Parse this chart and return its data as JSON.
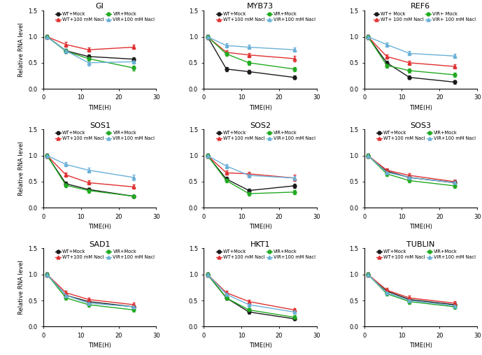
{
  "time_points": [
    1,
    6,
    12,
    24
  ],
  "panels": [
    {
      "title": "GI",
      "series": [
        {
          "label": "WT+Mock",
          "y": [
            1.0,
            0.73,
            0.62,
            0.57
          ],
          "err": [
            0.03,
            0.04,
            0.04,
            0.04
          ],
          "color": "#1a1a1a",
          "marker": "o"
        },
        {
          "label": "WT+100 mM Nacl",
          "y": [
            1.0,
            0.85,
            0.75,
            0.8
          ],
          "err": [
            0.04,
            0.05,
            0.04,
            0.04
          ],
          "color": "#e03030",
          "marker": "^"
        },
        {
          "label": "VIR+Mock",
          "y": [
            1.0,
            0.72,
            0.58,
            0.4
          ],
          "err": [
            0.03,
            0.04,
            0.04,
            0.05
          ],
          "color": "#22aa22",
          "marker": "o"
        },
        {
          "label": "VIR+100 mM Nacl",
          "y": [
            1.0,
            0.73,
            0.5,
            0.52
          ],
          "err": [
            0.03,
            0.04,
            0.05,
            0.04
          ],
          "color": "#6ab0d8",
          "marker": "^"
        }
      ]
    },
    {
      "title": "MYB73",
      "series": [
        {
          "label": "WT+Mock",
          "y": [
            1.0,
            0.38,
            0.33,
            0.22
          ],
          "err": [
            0.04,
            0.04,
            0.03,
            0.03
          ],
          "color": "#1a1a1a",
          "marker": "o"
        },
        {
          "label": "WT+100 mM Nacl",
          "y": [
            1.0,
            0.7,
            0.65,
            0.58
          ],
          "err": [
            0.04,
            0.04,
            0.04,
            0.05
          ],
          "color": "#e03030",
          "marker": "^"
        },
        {
          "label": "VIR+Mock",
          "y": [
            1.0,
            0.67,
            0.5,
            0.38
          ],
          "err": [
            0.04,
            0.04,
            0.04,
            0.04
          ],
          "color": "#22aa22",
          "marker": "o"
        },
        {
          "label": "VIR+100 mM Nacl",
          "y": [
            1.0,
            0.83,
            0.8,
            0.75
          ],
          "err": [
            0.03,
            0.04,
            0.04,
            0.04
          ],
          "color": "#6ab0d8",
          "marker": "^"
        }
      ]
    },
    {
      "title": "REF6",
      "series": [
        {
          "label": "WT+ Mock",
          "y": [
            1.0,
            0.5,
            0.22,
            0.13
          ],
          "err": [
            0.04,
            0.04,
            0.03,
            0.03
          ],
          "color": "#1a1a1a",
          "marker": "o"
        },
        {
          "label": "WT+ 100 mM Nacl",
          "y": [
            1.0,
            0.62,
            0.5,
            0.43
          ],
          "err": [
            0.04,
            0.04,
            0.04,
            0.04
          ],
          "color": "#e03030",
          "marker": "^"
        },
        {
          "label": "VIR+ Mock",
          "y": [
            1.0,
            0.45,
            0.35,
            0.27
          ],
          "err": [
            0.04,
            0.04,
            0.04,
            0.04
          ],
          "color": "#22aa22",
          "marker": "o"
        },
        {
          "label": "VIR+ 100 mM Nacl",
          "y": [
            1.0,
            0.85,
            0.68,
            0.63
          ],
          "err": [
            0.04,
            0.04,
            0.04,
            0.04
          ],
          "color": "#6ab0d8",
          "marker": "^"
        }
      ]
    },
    {
      "title": "SOS1",
      "series": [
        {
          "label": "WT+Mock",
          "y": [
            1.0,
            0.46,
            0.35,
            0.22
          ],
          "err": [
            0.04,
            0.04,
            0.03,
            0.03
          ],
          "color": "#1a1a1a",
          "marker": "o"
        },
        {
          "label": "WT+100 mM Nacl",
          "y": [
            1.0,
            0.63,
            0.48,
            0.4
          ],
          "err": [
            0.04,
            0.04,
            0.04,
            0.04
          ],
          "color": "#e03030",
          "marker": "^"
        },
        {
          "label": "VIR+Mock",
          "y": [
            1.0,
            0.43,
            0.33,
            0.22
          ],
          "err": [
            0.04,
            0.04,
            0.04,
            0.03
          ],
          "color": "#22aa22",
          "marker": "o"
        },
        {
          "label": "VIR+100 mM Nacl",
          "y": [
            1.0,
            0.83,
            0.72,
            0.58
          ],
          "err": [
            0.04,
            0.04,
            0.05,
            0.05
          ],
          "color": "#6ab0d8",
          "marker": "^"
        }
      ]
    },
    {
      "title": "SOS2",
      "series": [
        {
          "label": "WT+Mock",
          "y": [
            1.0,
            0.55,
            0.33,
            0.42
          ],
          "err": [
            0.04,
            0.04,
            0.04,
            0.04
          ],
          "color": "#1a1a1a",
          "marker": "o"
        },
        {
          "label": "WT+100 mM Nacl",
          "y": [
            1.0,
            0.67,
            0.65,
            0.57
          ],
          "err": [
            0.04,
            0.04,
            0.04,
            0.06
          ],
          "color": "#e03030",
          "marker": "^"
        },
        {
          "label": "VIR+Mock",
          "y": [
            1.0,
            0.52,
            0.27,
            0.3
          ],
          "err": [
            0.04,
            0.04,
            0.04,
            0.04
          ],
          "color": "#22aa22",
          "marker": "o"
        },
        {
          "label": "VIR+100 mM Nacl",
          "y": [
            1.0,
            0.8,
            0.62,
            0.57
          ],
          "err": [
            0.04,
            0.04,
            0.04,
            0.04
          ],
          "color": "#6ab0d8",
          "marker": "^"
        }
      ]
    },
    {
      "title": "SOS3",
      "series": [
        {
          "label": "WT+Mock",
          "y": [
            1.0,
            0.7,
            0.58,
            0.48
          ],
          "err": [
            0.04,
            0.04,
            0.04,
            0.04
          ],
          "color": "#1a1a1a",
          "marker": "o"
        },
        {
          "label": "WT+100 mM Nacl",
          "y": [
            1.0,
            0.72,
            0.62,
            0.5
          ],
          "err": [
            0.04,
            0.04,
            0.04,
            0.04
          ],
          "color": "#e03030",
          "marker": "^"
        },
        {
          "label": "VIR+Mock",
          "y": [
            1.0,
            0.65,
            0.52,
            0.42
          ],
          "err": [
            0.04,
            0.04,
            0.04,
            0.04
          ],
          "color": "#22aa22",
          "marker": "o"
        },
        {
          "label": "VIR+100 mM Nacl",
          "y": [
            1.0,
            0.68,
            0.58,
            0.48
          ],
          "err": [
            0.04,
            0.04,
            0.04,
            0.04
          ],
          "color": "#6ab0d8",
          "marker": "^"
        }
      ]
    },
    {
      "title": "SAD1",
      "series": [
        {
          "label": "WT+Mock",
          "y": [
            1.0,
            0.6,
            0.48,
            0.38
          ],
          "err": [
            0.04,
            0.04,
            0.04,
            0.04
          ],
          "color": "#1a1a1a",
          "marker": "o"
        },
        {
          "label": "WT+100 mM Nacl",
          "y": [
            1.0,
            0.65,
            0.52,
            0.42
          ],
          "err": [
            0.04,
            0.04,
            0.04,
            0.04
          ],
          "color": "#e03030",
          "marker": "^"
        },
        {
          "label": "VIR+Mock",
          "y": [
            1.0,
            0.55,
            0.42,
            0.32
          ],
          "err": [
            0.04,
            0.04,
            0.04,
            0.04
          ],
          "color": "#22aa22",
          "marker": "o"
        },
        {
          "label": "VIR+100 mM Nacl",
          "y": [
            1.0,
            0.6,
            0.45,
            0.38
          ],
          "err": [
            0.04,
            0.04,
            0.04,
            0.04
          ],
          "color": "#6ab0d8",
          "marker": "^"
        }
      ]
    },
    {
      "title": "HKT1",
      "series": [
        {
          "label": "WT+Mock",
          "y": [
            1.0,
            0.55,
            0.28,
            0.15
          ],
          "err": [
            0.04,
            0.04,
            0.04,
            0.03
          ],
          "color": "#1a1a1a",
          "marker": "o"
        },
        {
          "label": "WT+100 mM Nacl",
          "y": [
            1.0,
            0.65,
            0.48,
            0.32
          ],
          "err": [
            0.04,
            0.04,
            0.04,
            0.04
          ],
          "color": "#e03030",
          "marker": "^"
        },
        {
          "label": "VIR+Mock",
          "y": [
            1.0,
            0.55,
            0.32,
            0.18
          ],
          "err": [
            0.04,
            0.04,
            0.04,
            0.04
          ],
          "color": "#22aa22",
          "marker": "o"
        },
        {
          "label": "VIR+100 mM Nacl",
          "y": [
            1.0,
            0.62,
            0.42,
            0.28
          ],
          "err": [
            0.04,
            0.04,
            0.04,
            0.04
          ],
          "color": "#6ab0d8",
          "marker": "^"
        }
      ]
    },
    {
      "title": "TUBLIN",
      "series": [
        {
          "label": "WT+Mock",
          "y": [
            1.0,
            0.68,
            0.52,
            0.42
          ],
          "err": [
            0.04,
            0.04,
            0.04,
            0.04
          ],
          "color": "#1a1a1a",
          "marker": "o"
        },
        {
          "label": "WT+100 mM Nacl",
          "y": [
            1.0,
            0.7,
            0.55,
            0.45
          ],
          "err": [
            0.04,
            0.04,
            0.04,
            0.04
          ],
          "color": "#e03030",
          "marker": "^"
        },
        {
          "label": "VIR+Mock",
          "y": [
            1.0,
            0.63,
            0.48,
            0.38
          ],
          "err": [
            0.04,
            0.04,
            0.04,
            0.04
          ],
          "color": "#22aa22",
          "marker": "o"
        },
        {
          "label": "VIR+100 mM Nacl",
          "y": [
            1.0,
            0.65,
            0.5,
            0.4
          ],
          "err": [
            0.04,
            0.04,
            0.04,
            0.04
          ],
          "color": "#6ab0d8",
          "marker": "^"
        }
      ]
    }
  ],
  "xlim": [
    0,
    30
  ],
  "ylim": [
    0.0,
    1.5
  ],
  "yticks": [
    0.0,
    0.5,
    1.0,
    1.5
  ],
  "xticks": [
    0,
    10,
    20,
    30
  ],
  "xlabel": "TIME(H)",
  "ylabel": "Relative RNA level",
  "ms": 3.5,
  "lw": 1.0,
  "capsize": 1.5,
  "elinewidth": 0.7,
  "title_fontsize": 8,
  "tick_fontsize": 6,
  "label_fontsize": 6,
  "legend_fontsize": 4.8
}
